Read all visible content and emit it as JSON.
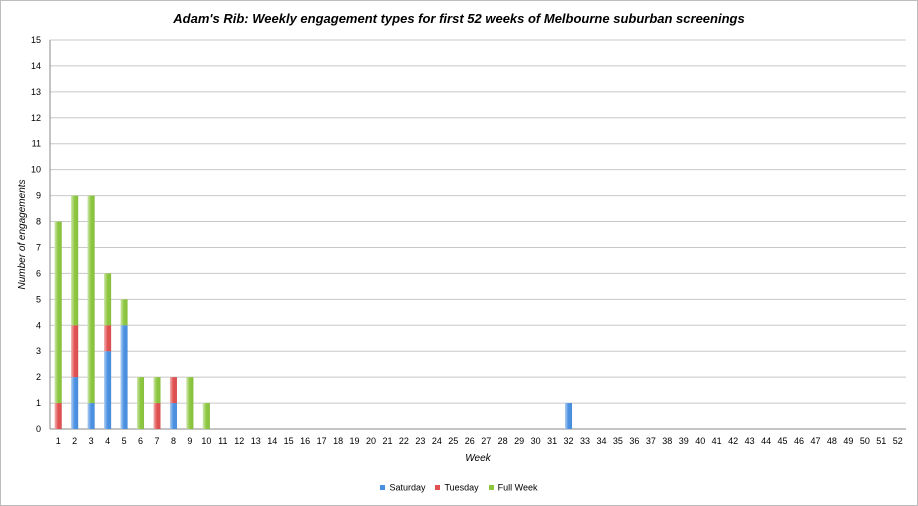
{
  "chart_data": {
    "type": "bar",
    "stacked": true,
    "title": "Adam's Rib: Weekly engagement types for first 52 weeks of Melbourne suburban screenings",
    "xlabel": "Week",
    "ylabel": "Number of engagements",
    "ylim": [
      0,
      15
    ],
    "yticks": [
      "0",
      "1",
      "2",
      "3",
      "4",
      "5",
      "6",
      "7",
      "8",
      "9",
      "10",
      "11",
      "12",
      "13",
      "14",
      "15"
    ],
    "categories": [
      "1",
      "2",
      "3",
      "4",
      "5",
      "6",
      "7",
      "8",
      "9",
      "10",
      "11",
      "12",
      "13",
      "14",
      "15",
      "16",
      "17",
      "18",
      "19",
      "20",
      "21",
      "22",
      "23",
      "24",
      "25",
      "26",
      "27",
      "28",
      "29",
      "30",
      "31",
      "32",
      "33",
      "34",
      "35",
      "36",
      "37",
      "38",
      "39",
      "40",
      "41",
      "42",
      "43",
      "44",
      "45",
      "46",
      "47",
      "48",
      "49",
      "50",
      "51",
      "52"
    ],
    "grid": true,
    "legend_position": "bottom",
    "series": [
      {
        "name": "Saturday",
        "color": "#4a90e2",
        "values": [
          0,
          2,
          1,
          3,
          4,
          0,
          0,
          1,
          0,
          0,
          0,
          0,
          0,
          0,
          0,
          0,
          0,
          0,
          0,
          0,
          0,
          0,
          0,
          0,
          0,
          0,
          0,
          0,
          0,
          0,
          0,
          1,
          0,
          0,
          0,
          0,
          0,
          0,
          0,
          0,
          0,
          0,
          0,
          0,
          0,
          0,
          0,
          0,
          0,
          0,
          0,
          0
        ]
      },
      {
        "name": "Tuesday",
        "color": "#e05050",
        "values": [
          1,
          2,
          0,
          1,
          0,
          0,
          1,
          1,
          0,
          0,
          0,
          0,
          0,
          0,
          0,
          0,
          0,
          0,
          0,
          0,
          0,
          0,
          0,
          0,
          0,
          0,
          0,
          0,
          0,
          0,
          0,
          0,
          0,
          0,
          0,
          0,
          0,
          0,
          0,
          0,
          0,
          0,
          0,
          0,
          0,
          0,
          0,
          0,
          0,
          0,
          0,
          0
        ]
      },
      {
        "name": "Full Week",
        "color": "#8cc63f",
        "values": [
          7,
          5,
          8,
          2,
          1,
          2,
          1,
          0,
          2,
          1,
          0,
          0,
          0,
          0,
          0,
          0,
          0,
          0,
          0,
          0,
          0,
          0,
          0,
          0,
          0,
          0,
          0,
          0,
          0,
          0,
          0,
          0,
          0,
          0,
          0,
          0,
          0,
          0,
          0,
          0,
          0,
          0,
          0,
          0,
          0,
          0,
          0,
          0,
          0,
          0,
          0,
          0
        ]
      }
    ]
  }
}
